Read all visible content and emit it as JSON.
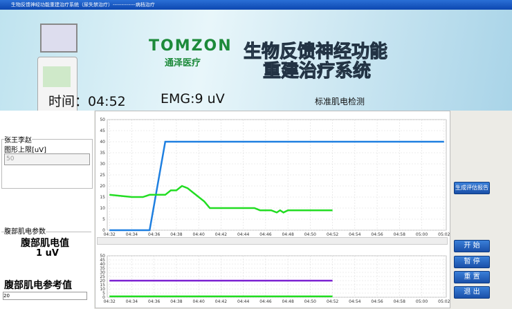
{
  "window_title": "生物反馈神经功能重建治疗系统（尿失禁治疗）-------------病档治疗",
  "banner": {
    "logo": "TOMZON",
    "logo_cn": "通泽医疗",
    "system_title_1": "生物反馈神经功能",
    "system_title_2": "重建治疗系统",
    "time": "时间：04:52",
    "emg": "EMG:9 uV",
    "mode": "标准肌电检测"
  },
  "left_panel": {
    "patient": "张王李赵",
    "upper_limit_label": "图形上限[uV]",
    "upper_limit": "50",
    "group_title": "腹部肌电参数",
    "emg_label": "腹部肌电值",
    "emg_value": "1 uV",
    "ref_label": "腹部肌电参考值",
    "ref_value": "20"
  },
  "buttons": {
    "report": "生成评估报告",
    "start": "开 始",
    "pause": "暂 停",
    "reset": "重 置",
    "exit": "退 出"
  },
  "chart_data": [
    {
      "type": "line",
      "x": [
        32,
        34,
        34.5,
        35,
        35.6,
        36,
        37,
        37.5,
        38,
        38.5,
        39,
        39.5,
        40,
        40.5,
        41,
        41.5,
        45,
        45.5,
        46.5,
        47,
        47.3,
        47.6,
        48,
        52,
        62
      ],
      "series": [
        {
          "color": "#1e7fe0",
          "values": [
            0,
            0,
            0,
            0,
            0,
            11.4,
            40,
            40,
            40,
            40,
            40,
            40,
            40,
            40,
            40,
            40,
            40,
            40,
            40,
            40,
            40,
            40,
            40,
            40,
            40
          ]
        },
        {
          "color": "#22dd22",
          "values": [
            16,
            15,
            15,
            15,
            16,
            16,
            16,
            18,
            18,
            20,
            19,
            17,
            15,
            13,
            10,
            10,
            10,
            9,
            9,
            8,
            9,
            8,
            9,
            9,
            null
          ]
        }
      ],
      "xlim": [
        31.8,
        62.2
      ],
      "ylim": [
        0,
        50
      ],
      "yticks": [
        0,
        5,
        10,
        15,
        20,
        25,
        30,
        35,
        40,
        45,
        50
      ],
      "xticks": [
        {
          "value": 32,
          "label": "04:32"
        },
        {
          "value": 34,
          "label": "04:34"
        },
        {
          "value": 36,
          "label": "04:36"
        },
        {
          "value": 38,
          "label": "04:38"
        },
        {
          "value": 40,
          "label": "04:40"
        },
        {
          "value": 42,
          "label": "04:42"
        },
        {
          "value": 44,
          "label": "04:44"
        },
        {
          "value": 46,
          "label": "04:46"
        },
        {
          "value": 48,
          "label": "04:48"
        },
        {
          "value": 50,
          "label": "04:50"
        },
        {
          "value": 52,
          "label": "04:52"
        },
        {
          "value": 54,
          "label": "04:54"
        },
        {
          "value": 56,
          "label": "04:56"
        },
        {
          "value": 58,
          "label": "04:58"
        },
        {
          "value": 60,
          "label": "05:00"
        },
        {
          "value": 62,
          "label": "05:02"
        }
      ],
      "grid": true
    },
    {
      "type": "line",
      "x": [
        32,
        52
      ],
      "series": [
        {
          "color": "#7a1fd1",
          "values": [
            20,
            20
          ]
        },
        {
          "color": "#22dd22",
          "values": [
            1,
            1
          ]
        }
      ],
      "xlim": [
        31.8,
        62.2
      ],
      "ylim": [
        0,
        50
      ],
      "yticks": [
        0,
        5,
        10,
        15,
        20,
        25,
        30,
        35,
        40,
        45,
        50
      ],
      "xticks": [
        {
          "value": 32,
          "label": "04:32"
        },
        {
          "value": 34,
          "label": "04:34"
        },
        {
          "value": 36,
          "label": "04:36"
        },
        {
          "value": 38,
          "label": "04:38"
        },
        {
          "value": 40,
          "label": "04:40"
        },
        {
          "value": 42,
          "label": "04:42"
        },
        {
          "value": 44,
          "label": "04:44"
        },
        {
          "value": 46,
          "label": "04:46"
        },
        {
          "value": 48,
          "label": "04:48"
        },
        {
          "value": 50,
          "label": "04:50"
        },
        {
          "value": 52,
          "label": "04:52"
        },
        {
          "value": 54,
          "label": "04:54"
        },
        {
          "value": 56,
          "label": "04:56"
        },
        {
          "value": 58,
          "label": "04:58"
        },
        {
          "value": 60,
          "label": "05:00"
        },
        {
          "value": 62,
          "label": "05:02"
        }
      ],
      "grid": true
    }
  ]
}
